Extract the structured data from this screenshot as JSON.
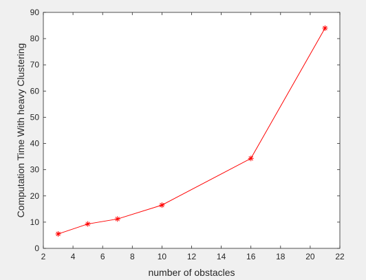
{
  "chart_data": {
    "type": "line",
    "title": "",
    "xlabel": "number of obstacles",
    "ylabel": "Computation Time With heavy Clustering",
    "xlim": [
      2,
      22
    ],
    "ylim": [
      0,
      90
    ],
    "xticks": [
      2,
      4,
      6,
      8,
      10,
      12,
      14,
      16,
      18,
      20,
      22
    ],
    "yticks": [
      0,
      10,
      20,
      30,
      40,
      50,
      60,
      70,
      80,
      90
    ],
    "grid": false,
    "legend": "none",
    "series": [
      {
        "marker": "asterisk",
        "color": "#ff0000",
        "x": [
          3,
          5,
          7,
          10,
          16,
          21
        ],
        "y": [
          5.5,
          9.3,
          11.2,
          16.5,
          34.3,
          84
        ]
      }
    ]
  }
}
